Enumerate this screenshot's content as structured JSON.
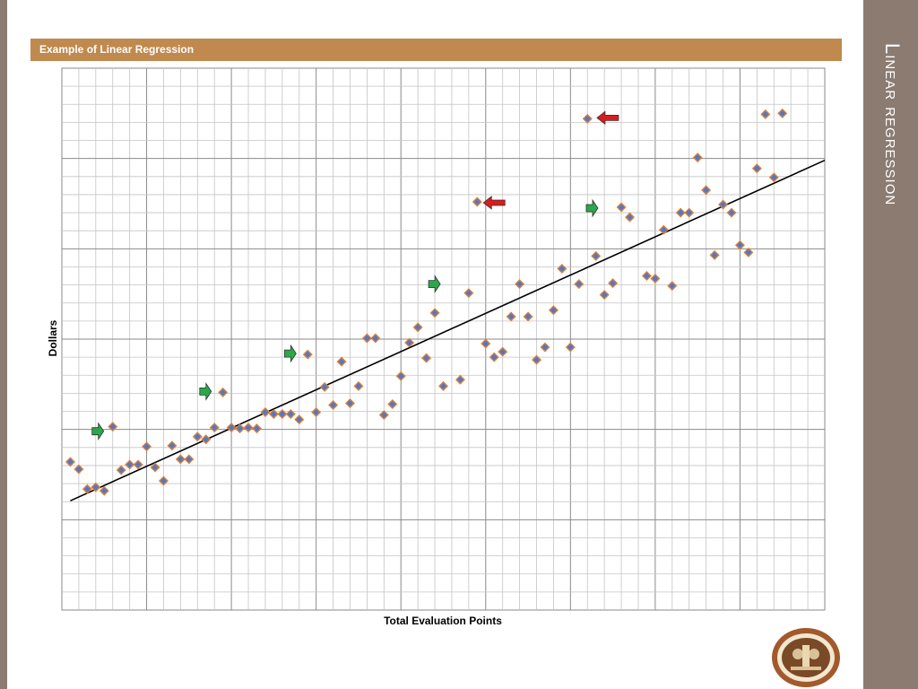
{
  "slide": {
    "title": "Example of Linear Regression",
    "side_title": "Linear regression"
  },
  "chart_data": {
    "type": "scatter",
    "title": "",
    "xlabel": "Total Evaluation Points",
    "ylabel": "Dollars",
    "xlim": [
      0,
      90
    ],
    "ylim": [
      0,
      60
    ],
    "grid": true,
    "marker_color": "#4a7cc7",
    "marker_edge_color": "#e07b39",
    "line_color": "#000000",
    "points": [
      [
        1,
        16.4
      ],
      [
        2,
        15.6
      ],
      [
        3,
        13.4
      ],
      [
        4,
        13.6
      ],
      [
        5,
        13.2
      ],
      [
        6,
        20.3
      ],
      [
        7,
        15.5
      ],
      [
        8,
        16.1
      ],
      [
        9,
        16.1
      ],
      [
        10,
        18.1
      ],
      [
        11,
        15.8
      ],
      [
        12,
        14.3
      ],
      [
        13,
        18.2
      ],
      [
        14,
        16.7
      ],
      [
        15,
        16.7
      ],
      [
        16,
        19.2
      ],
      [
        17,
        18.9
      ],
      [
        18,
        20.2
      ],
      [
        19,
        24.1
      ],
      [
        20,
        20.2
      ],
      [
        21,
        20.1
      ],
      [
        22,
        20.2
      ],
      [
        23,
        20.1
      ],
      [
        24,
        21.9
      ],
      [
        25,
        21.7
      ],
      [
        26,
        21.7
      ],
      [
        27,
        21.7
      ],
      [
        28,
        21.1
      ],
      [
        29,
        28.3
      ],
      [
        30,
        21.9
      ],
      [
        31,
        24.7
      ],
      [
        32,
        22.7
      ],
      [
        33,
        27.5
      ],
      [
        34,
        22.9
      ],
      [
        35,
        24.8
      ],
      [
        36,
        30.1
      ],
      [
        37,
        30.1
      ],
      [
        38,
        21.6
      ],
      [
        39,
        22.8
      ],
      [
        40,
        25.9
      ],
      [
        41,
        29.6
      ],
      [
        42,
        31.3
      ],
      [
        43,
        27.9
      ],
      [
        44,
        32.9
      ],
      [
        45,
        24.8
      ],
      [
        47,
        25.5
      ],
      [
        48,
        35.1
      ],
      [
        49,
        45.2
      ],
      [
        50,
        29.5
      ],
      [
        51,
        28.0
      ],
      [
        52,
        28.6
      ],
      [
        53,
        32.5
      ],
      [
        54,
        36.1
      ],
      [
        55,
        32.5
      ],
      [
        56,
        27.7
      ],
      [
        57,
        29.1
      ],
      [
        58,
        33.2
      ],
      [
        59,
        37.8
      ],
      [
        60,
        29.1
      ],
      [
        61,
        36.1
      ],
      [
        62,
        54.4
      ],
      [
        63,
        39.2
      ],
      [
        64,
        34.9
      ],
      [
        65,
        36.2
      ],
      [
        66,
        44.6
      ],
      [
        67,
        43.5
      ],
      [
        69,
        37.0
      ],
      [
        70,
        36.7
      ],
      [
        71,
        42.1
      ],
      [
        72,
        35.9
      ],
      [
        73,
        44.0
      ],
      [
        74,
        44.0
      ],
      [
        75,
        50.1
      ],
      [
        76,
        46.5
      ],
      [
        77,
        39.3
      ],
      [
        78,
        44.9
      ],
      [
        79,
        44.0
      ],
      [
        80,
        40.4
      ],
      [
        81,
        39.6
      ],
      [
        82,
        48.9
      ],
      [
        83,
        54.9
      ],
      [
        84,
        47.9
      ],
      [
        85,
        55.0
      ]
    ],
    "regression_line": [
      [
        1,
        12.1
      ],
      [
        90,
        49.8
      ]
    ],
    "annotations": [
      {
        "type": "arrow-right",
        "color": "#2aa84a",
        "x": 4.2,
        "y": 19.8
      },
      {
        "type": "arrow-right",
        "color": "#2aa84a",
        "x": 16.9,
        "y": 24.2
      },
      {
        "type": "arrow-right",
        "color": "#2aa84a",
        "x": 26.9,
        "y": 28.4
      },
      {
        "type": "arrow-right",
        "color": "#2aa84a",
        "x": 43.9,
        "y": 36.1
      },
      {
        "type": "arrow-right",
        "color": "#2aa84a",
        "x": 62.5,
        "y": 44.5
      },
      {
        "type": "arrow-left",
        "color": "#d91c1c",
        "x": 51.0,
        "y": 45.1
      },
      {
        "type": "arrow-left",
        "color": "#d91c1c",
        "x": 64.4,
        "y": 54.5
      }
    ]
  }
}
